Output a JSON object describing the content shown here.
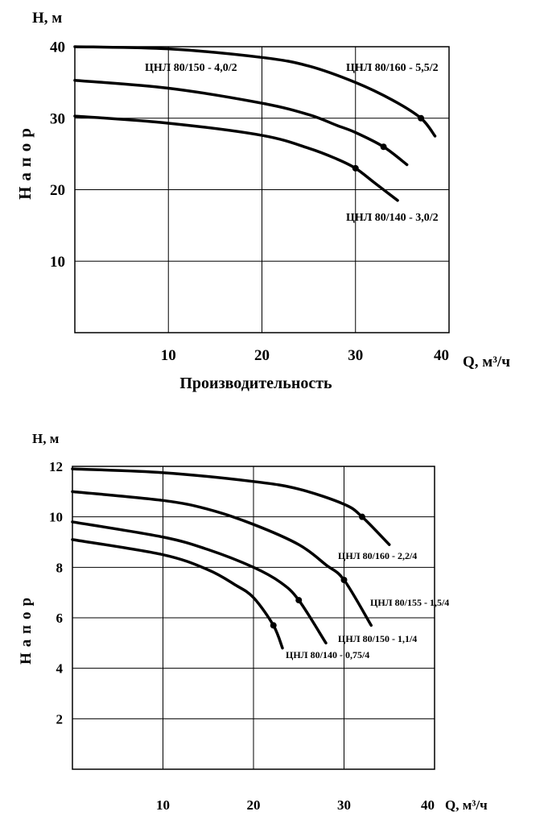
{
  "chart_data": [
    {
      "type": "line",
      "title": "",
      "xlabel": "Производительность",
      "xunit_label": "Q, м³/ч",
      "ylabel": "Напор",
      "yunit_label": "H, м",
      "xlim": [
        0,
        40
      ],
      "ylim": [
        0,
        40
      ],
      "xticks": [
        "10",
        "20",
        "30",
        "40"
      ],
      "xtick_values": [
        10,
        20,
        30,
        40
      ],
      "yticks": [
        "10",
        "20",
        "30",
        "40"
      ],
      "ytick_values": [
        10,
        20,
        30,
        40
      ],
      "grid": true,
      "series": [
        {
          "name": "ЦНЛ 80/160 - 5,5/2",
          "x": [
            0,
            10,
            20,
            25,
            30,
            34,
            37,
            38.5
          ],
          "y": [
            40,
            39.7,
            38.5,
            37.3,
            35,
            32.5,
            30,
            27.5
          ],
          "marker": [
            37,
            30
          ]
        },
        {
          "name": "ЦНЛ 80/150 - 4,0/2",
          "x": [
            0,
            10,
            20,
            25,
            28,
            30,
            33,
            35.5
          ],
          "y": [
            35.3,
            34.2,
            32.1,
            30.5,
            29,
            28,
            26,
            23.5
          ],
          "marker": [
            33,
            26
          ]
        },
        {
          "name": "ЦНЛ 80/140 - 3,0/2",
          "x": [
            0,
            10,
            20,
            25,
            28,
            30,
            32,
            34.5
          ],
          "y": [
            30.3,
            29.3,
            27.6,
            25.8,
            24.3,
            23,
            21,
            18.5
          ],
          "marker": [
            30,
            23
          ]
        }
      ]
    },
    {
      "type": "line",
      "title": "",
      "xlabel": "Производительность",
      "xunit_label": "Q, м³/ч",
      "ylabel": "Напор",
      "yunit_label": "H, м",
      "xlim": [
        0,
        40
      ],
      "ylim": [
        0,
        12
      ],
      "xticks": [
        "10",
        "20",
        "30",
        "40"
      ],
      "xtick_values": [
        10,
        20,
        30,
        40
      ],
      "yticks": [
        "2",
        "4",
        "6",
        "8",
        "10",
        "12"
      ],
      "ytick_values": [
        2,
        4,
        6,
        8,
        10,
        12
      ],
      "grid": true,
      "series": [
        {
          "name": "ЦНЛ 80/160 - 2,2/4",
          "x": [
            0,
            10,
            20,
            25,
            30,
            32,
            35
          ],
          "y": [
            11.9,
            11.75,
            11.4,
            11.1,
            10.5,
            10,
            8.9
          ],
          "marker": [
            32,
            10
          ]
        },
        {
          "name": "ЦНЛ 80/155 - 1,5/4",
          "x": [
            0,
            10,
            15,
            20,
            25,
            28,
            30,
            33
          ],
          "y": [
            11.0,
            10.65,
            10.3,
            9.7,
            8.9,
            8.1,
            7.5,
            5.7
          ],
          "marker": [
            30,
            7.5
          ]
        },
        {
          "name": "ЦНЛ 80/150 - 1,1/4",
          "x": [
            0,
            10,
            15,
            20,
            23,
            25,
            28
          ],
          "y": [
            9.8,
            9.2,
            8.7,
            8.0,
            7.4,
            6.7,
            5.0
          ],
          "marker": [
            25,
            6.7
          ]
        },
        {
          "name": "ЦНЛ 80/140 - 0,75/4",
          "x": [
            0,
            10,
            15,
            18,
            20,
            22.2,
            23.2
          ],
          "y": [
            9.1,
            8.5,
            7.9,
            7.3,
            6.8,
            5.7,
            4.8
          ],
          "marker": [
            22.2,
            5.7
          ]
        }
      ]
    }
  ]
}
